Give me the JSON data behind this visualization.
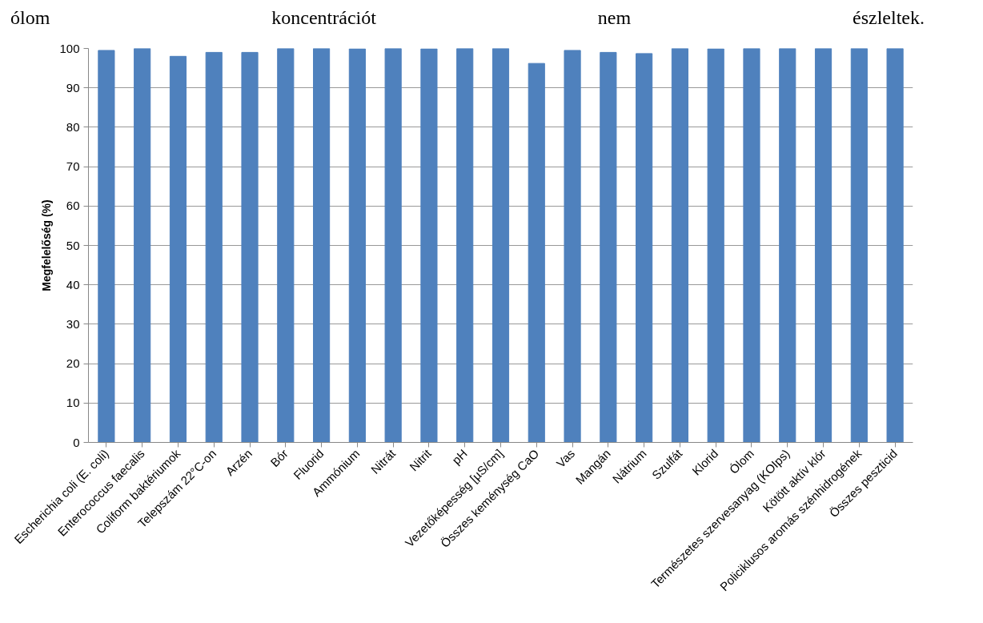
{
  "chart_data": {
    "type": "bar",
    "annotations": [
      "ólom koncentrációt nem észleltek."
    ],
    "ylabel": "Megfelelőség (%)",
    "categories": [
      "Escherichia coli (E. coli)",
      "Enterococcus faecalis",
      "Coliform baktériumok",
      "Telepszám 22°C-on",
      "Arzén",
      "Bór",
      "Fluorid",
      "Ammónium",
      "Nitrát",
      "Nitrit",
      "pH",
      "Vezetőképesség [µS/cm]",
      "Összes keménység CaO",
      "Vas",
      "Mangán",
      "Nátrium",
      "Szulfát",
      "Klorid",
      "Ólom",
      "Természetes szervesanyag (KOIps)",
      "Kötött aktív klór",
      "Policiklusos aromás szénhidrogének",
      "Összes peszticid"
    ],
    "values": [
      99.5,
      100,
      98,
      99,
      99,
      100,
      100,
      99.9,
      100,
      99.9,
      100,
      100,
      96.2,
      99.5,
      99,
      98.7,
      100,
      99.9,
      100,
      100,
      100,
      100,
      100
    ],
    "color": "#4f81bd",
    "ylim": [
      0,
      100
    ],
    "yticks": [
      0,
      10,
      20,
      30,
      40,
      50,
      60,
      70,
      80,
      90,
      100
    ],
    "grid": "y"
  }
}
